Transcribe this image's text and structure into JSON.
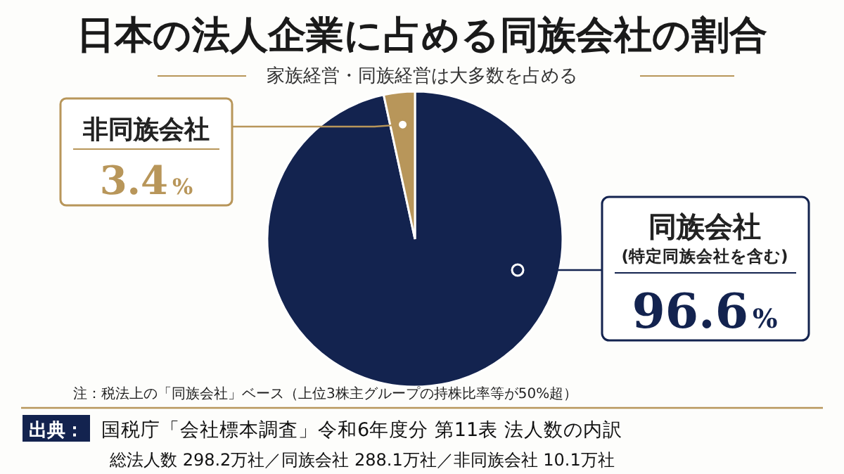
{
  "chart_data": {
    "type": "pie",
    "title": "日本の法人企業に占める同族会社の割合",
    "subtitle": "家族経営・同族経営は大多数を占める",
    "categories": [
      "同族会社",
      "非同族会社"
    ],
    "values": [
      96.6,
      3.4
    ],
    "colors": [
      "#13234f",
      "#b8965a"
    ],
    "value_labels": [
      "96.6%",
      "3.4%"
    ],
    "annotations": [
      "(特定同族会社を含む)",
      "注：税法上の「同族会社」ベース（上位3株主グループの持株比率等が50%超）",
      "出典：",
      "国税庁「会社標本調査」令和6年度分 第11表 法人数の内訳",
      "総法人数 298.2万社／同族会社 288.1万社／非同族会社 10.1万社"
    ]
  }
}
